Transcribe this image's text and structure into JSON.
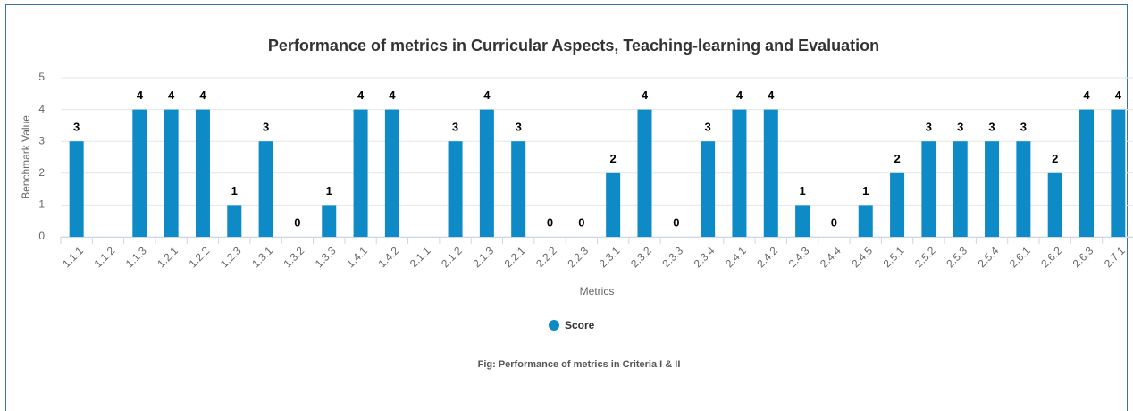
{
  "chart_data": {
    "type": "bar",
    "title": "Performance of metrics in Curricular Aspects, Teaching-learning and Evaluation",
    "xlabel": "Metrics",
    "ylabel": "Benchmark Value",
    "categories": [
      "1.1.1",
      "1.1.2",
      "1.1.3",
      "1.2.1",
      "1.2.2",
      "1.2.3",
      "1.3.1",
      "1.3.2",
      "1.3.3",
      "1.4.1",
      "1.4.2",
      "2.1.1",
      "2.1.2",
      "2.1.3",
      "2.2.1",
      "2.2.2",
      "2.2.3",
      "2.3.1",
      "2.3.2",
      "2.3.3",
      "2.3.4",
      "2.4.1",
      "2.4.2",
      "2.4.3",
      "2.4.4",
      "2.4.5",
      "2.5.1",
      "2.5.2",
      "2.5.3",
      "2.5.4",
      "2.6.1",
      "2.6.2",
      "2.6.3",
      "2.7.1"
    ],
    "series": [
      {
        "name": "Score",
        "color": "#0e8ac7",
        "values": [
          3,
          null,
          4,
          4,
          4,
          1,
          3,
          0,
          1,
          4,
          4,
          null,
          3,
          4,
          3,
          0,
          0,
          2,
          4,
          0,
          3,
          4,
          4,
          1,
          0,
          1,
          2,
          3,
          3,
          3,
          3,
          2,
          4,
          4
        ]
      }
    ],
    "ylim": [
      0,
      5
    ],
    "yticks": [
      0,
      1,
      2,
      3,
      4,
      5
    ],
    "grid": true,
    "legend": "bottom",
    "caption": "Fig: Performance of metrics in Criteria I & II"
  }
}
